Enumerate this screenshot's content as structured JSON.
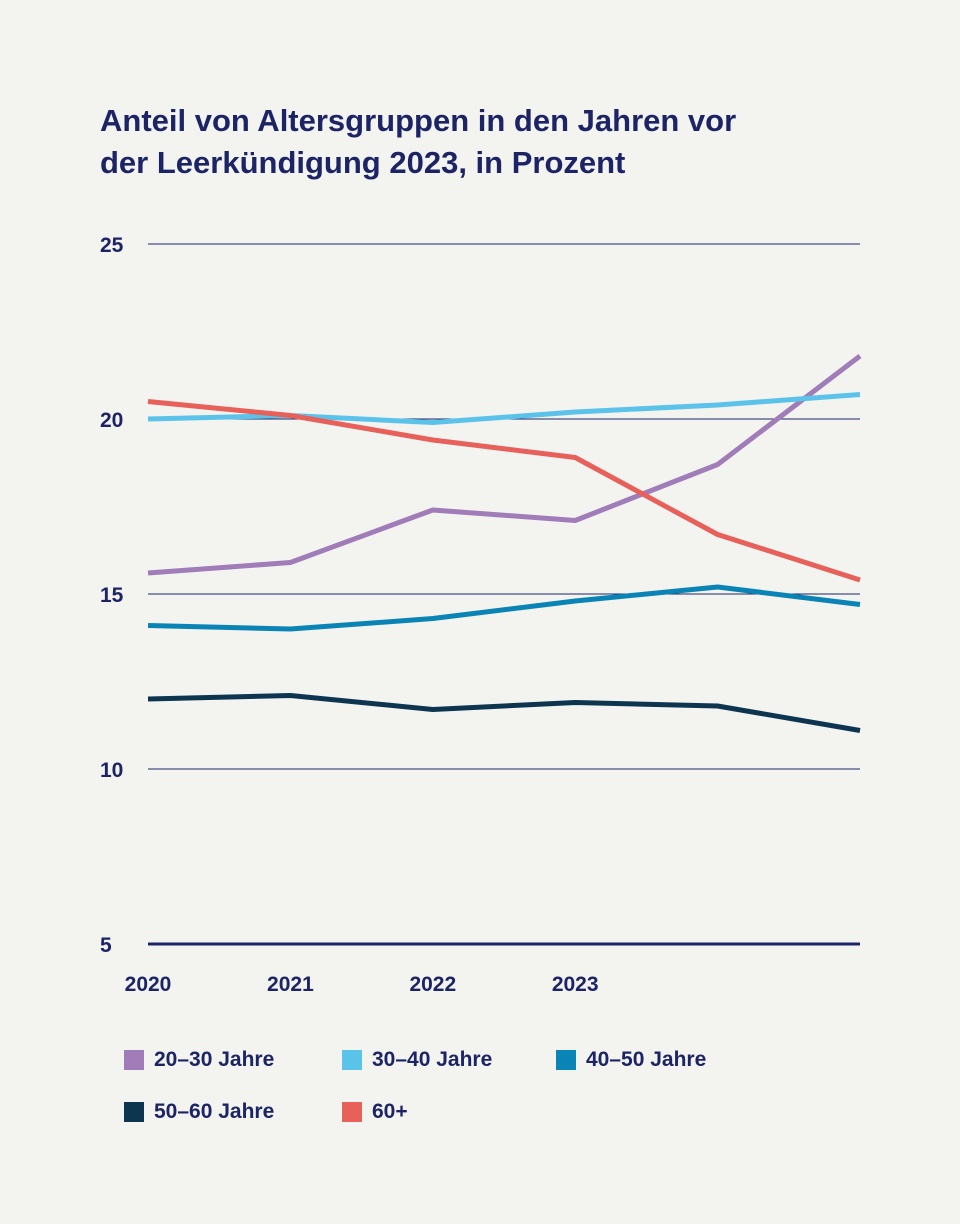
{
  "chart_data": {
    "type": "line",
    "title_lines": [
      "Anteil von Altersgruppen in den Jahren vor",
      "der Leerkündigung 2023, in Prozent"
    ],
    "x_tick_labels": [
      "2020",
      "2021",
      "2022",
      "2023"
    ],
    "y_ticks": [
      "25",
      "20",
      "15",
      "10",
      "5"
    ],
    "y_tick_values": [
      25,
      20,
      15,
      10,
      5
    ],
    "ylim": [
      5,
      25
    ],
    "grid": true,
    "legend_position": "bottom",
    "series": [
      {
        "name": "20–30 Jahre",
        "color": "#a07cb8",
        "values": [
          15.6,
          15.9,
          17.4,
          17.1,
          18.7,
          21.8
        ]
      },
      {
        "name": "30–40 Jahre",
        "color": "#5bc3ea",
        "values": [
          20.0,
          20.1,
          19.9,
          20.2,
          20.4,
          20.7
        ]
      },
      {
        "name": "40–50 Jahre",
        "color": "#0a84b5",
        "values": [
          14.1,
          14.0,
          14.3,
          14.8,
          15.2,
          14.7
        ]
      },
      {
        "name": "50–60 Jahre",
        "color": "#0d3550",
        "values": [
          12.0,
          12.1,
          11.7,
          11.9,
          11.8,
          11.1
        ]
      },
      {
        "name": "60+",
        "color": "#e8605a",
        "values": [
          20.5,
          20.1,
          19.4,
          18.9,
          16.7,
          15.4
        ]
      }
    ],
    "axis_color": "#1c2466"
  }
}
